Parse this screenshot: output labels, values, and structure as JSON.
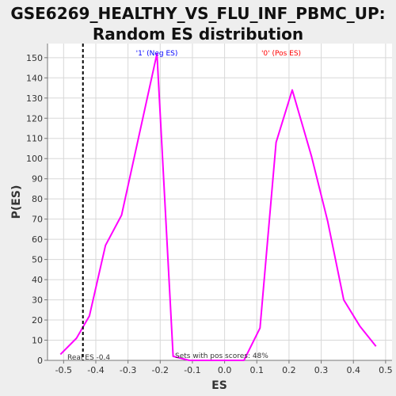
{
  "chart_data": {
    "type": "line",
    "title_line1": "GSE6269_HEALTHY_VS_FLU_INF_PBMC_UP:",
    "title_line2": "Random ES distribution",
    "xlabel": "ES",
    "ylabel": "P(ES)",
    "xlim": [
      -0.55,
      0.52
    ],
    "ylim": [
      0,
      157
    ],
    "x_ticks": [
      "-0.5",
      "-0.4",
      "-0.3",
      "-0.2",
      "-0.1",
      "0.0",
      "0.1",
      "0.2",
      "0.3",
      "0.4",
      "0.5"
    ],
    "x_tick_values": [
      -0.5,
      -0.4,
      -0.3,
      -0.2,
      -0.1,
      0.0,
      0.1,
      0.2,
      0.3,
      0.4,
      0.5
    ],
    "y_ticks": [
      0,
      10,
      20,
      30,
      40,
      50,
      60,
      70,
      80,
      90,
      100,
      110,
      120,
      130,
      140,
      150
    ],
    "grid": true,
    "series": [
      {
        "color": "#ff00ff",
        "x": [
          -0.51,
          -0.46,
          -0.42,
          -0.37,
          -0.32,
          -0.21,
          -0.16,
          -0.11,
          -0.06,
          0.0,
          0.06,
          0.11,
          0.16,
          0.21,
          0.27,
          0.32,
          0.37,
          0.42,
          0.47
        ],
        "y": [
          3,
          11,
          22,
          57,
          72,
          152,
          2,
          0,
          0,
          0,
          0,
          16,
          108,
          134,
          101,
          69,
          30,
          17,
          7
        ]
      }
    ],
    "real_es": -0.44,
    "annotations": {
      "neg_label": "'1' (Neg ES)",
      "pos_label": "'0' (Pos ES)",
      "neg_color": "#0000ff",
      "pos_color": "#ff0000",
      "real_es_label": "Real ES -0.4",
      "pos_scores_label": "Sets with pos scores: 48%"
    }
  }
}
